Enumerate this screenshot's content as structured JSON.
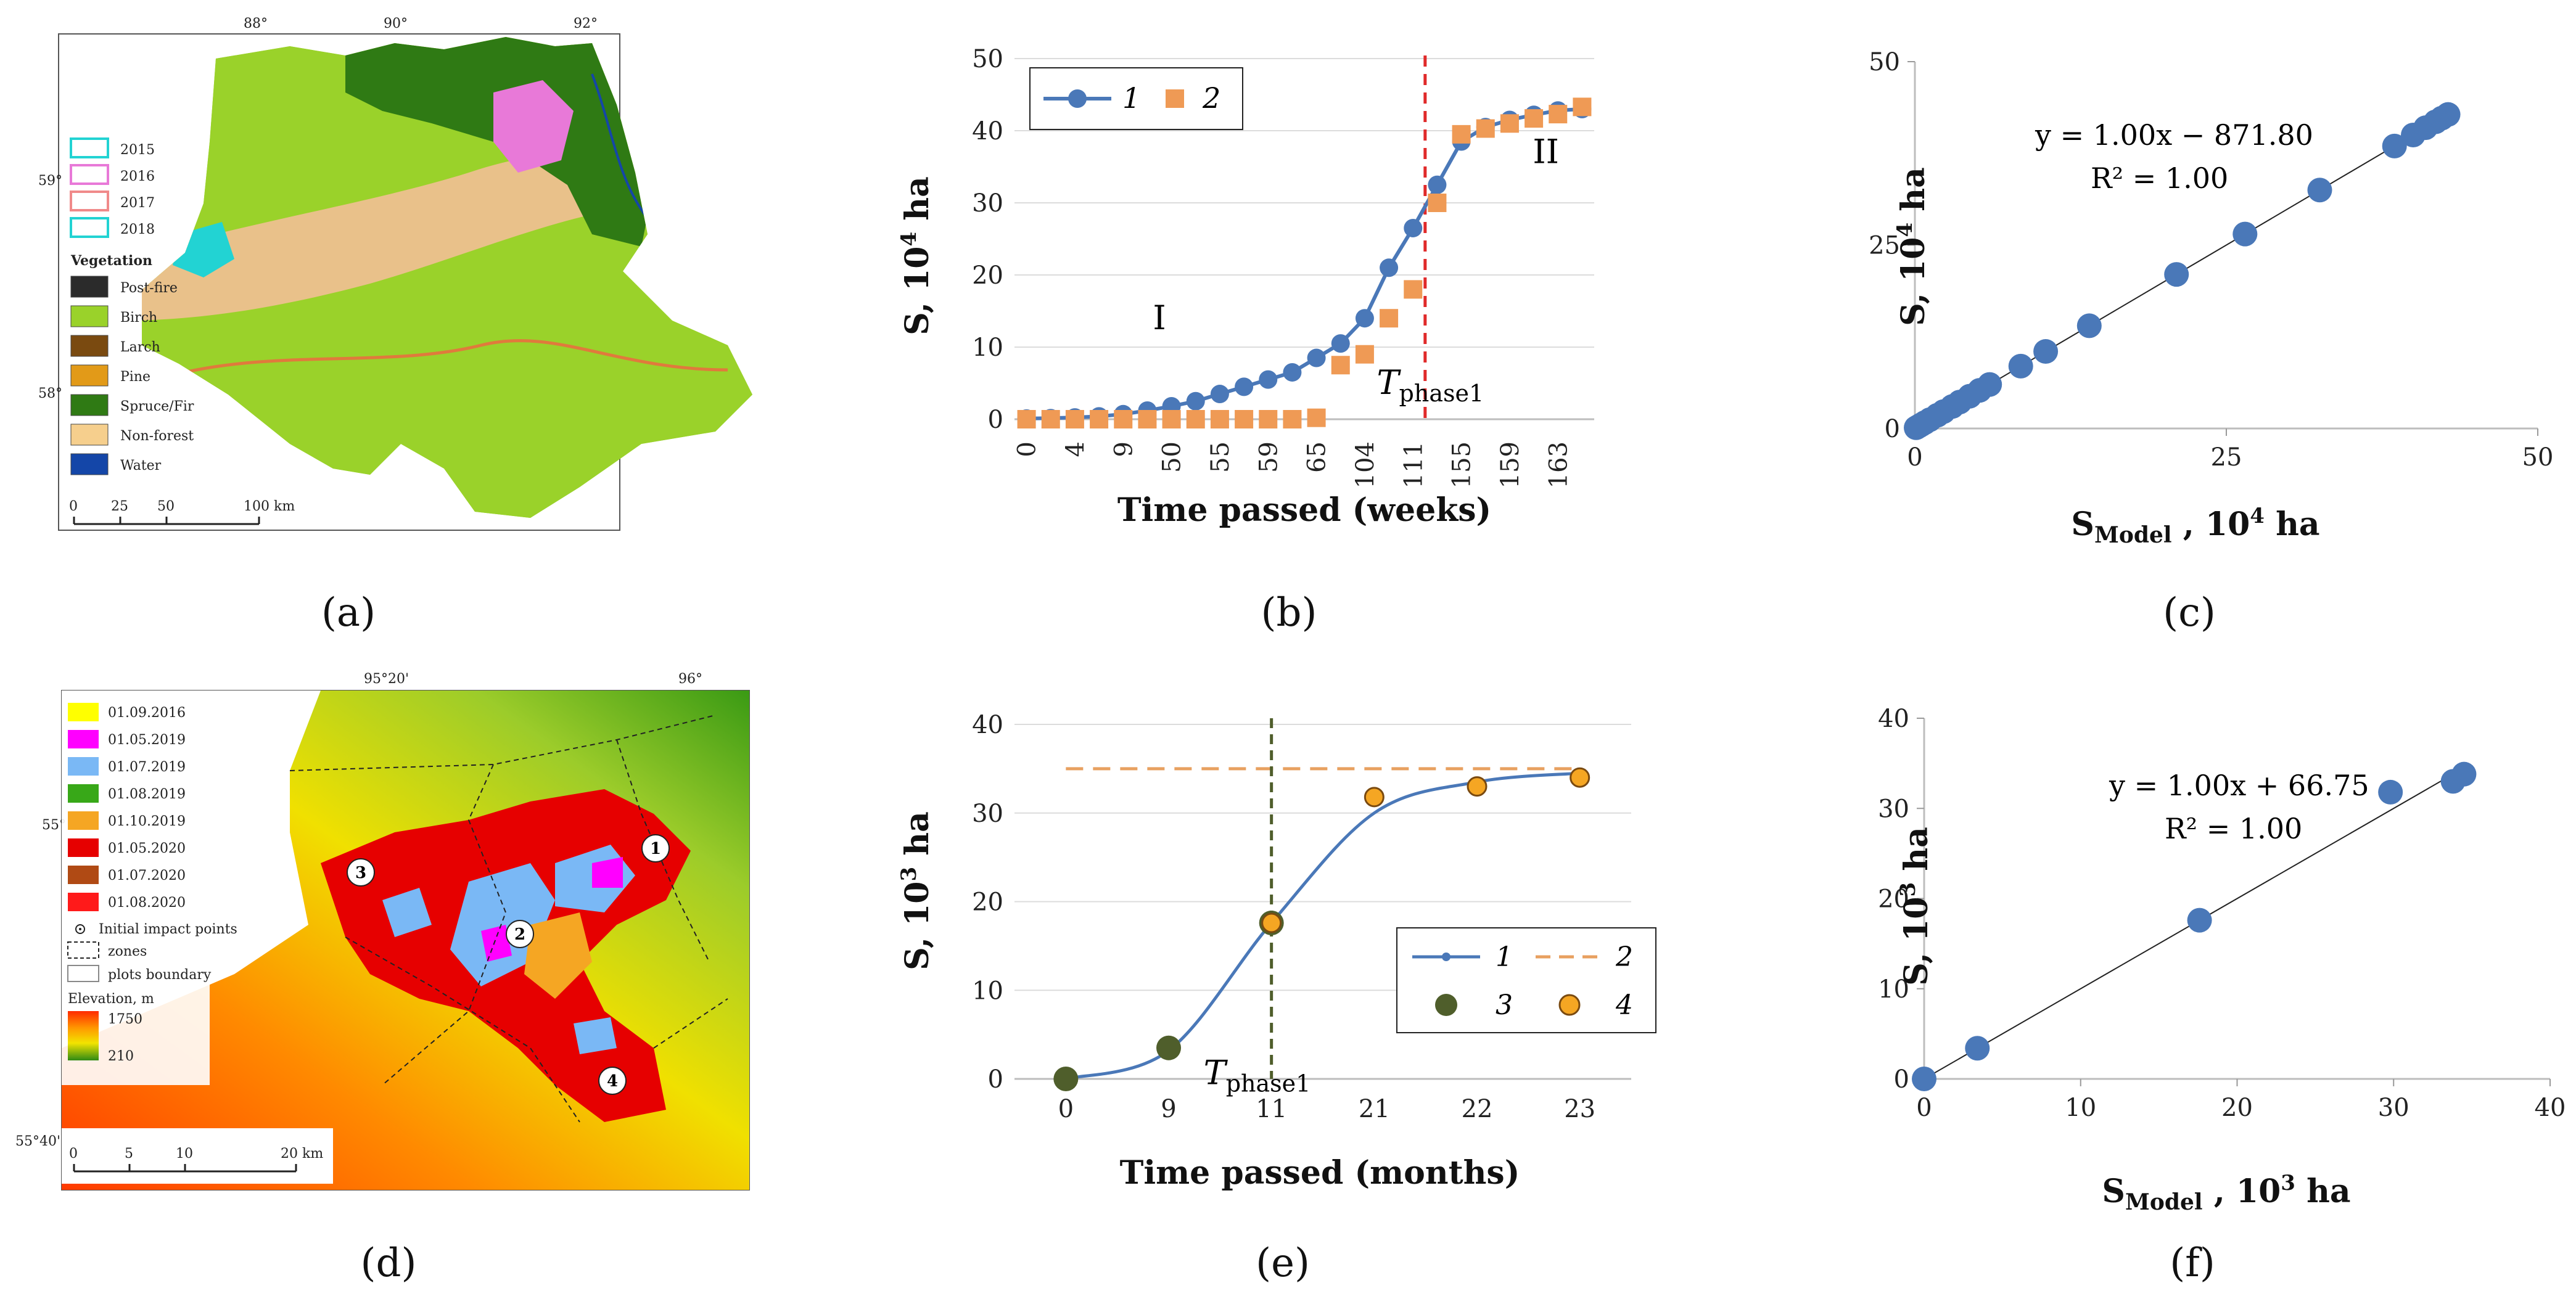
{
  "captions": [
    "(a)",
    "(b)",
    "(c)",
    "(d)",
    "(e)",
    "(f)"
  ],
  "map_a": {
    "coords_top": [
      "88°",
      "90°",
      "92°"
    ],
    "coords_left": [
      "59°",
      "58°"
    ],
    "legend_years": [
      {
        "label": "2015",
        "color": "#22d3d3"
      },
      {
        "label": "2016",
        "color": "#e879d8"
      },
      {
        "label": "2017",
        "color": "#f08a8a"
      },
      {
        "label": "2018",
        "color": "#22d3d3"
      }
    ],
    "vegetation_title": "Vegetation",
    "legend_veg": [
      {
        "label": "Post-fire",
        "color": "#2b2b2b"
      },
      {
        "label": "Birch",
        "color": "#9ad22a"
      },
      {
        "label": "Larch",
        "color": "#7a4a10"
      },
      {
        "label": "Pine",
        "color": "#e29a18"
      },
      {
        "label": "Spruce/Fir",
        "color": "#2f7a14"
      },
      {
        "label": "Non-forest",
        "color": "#f6cf8d"
      },
      {
        "label": "Water",
        "color": "#1446a8"
      }
    ],
    "scale_ticks": [
      "0",
      "25",
      "50",
      "100 km"
    ],
    "colors": {
      "birch": "#9ad22a",
      "spruce": "#2f7a14",
      "nonforest": "#e9c18a",
      "pink": "#e879d8",
      "cyan": "#22d3d3",
      "fire": "#e07a3c",
      "water": "#1446a8"
    }
  },
  "map_d": {
    "coords_top": [
      "95°20'",
      "96°"
    ],
    "coords_left": [
      "55°"
    ],
    "coords_corner": "55°40'",
    "legend_dates": [
      {
        "label": "01.09.2016",
        "color": "#ffff00"
      },
      {
        "label": "01.05.2019",
        "color": "#ff00ff"
      },
      {
        "label": "01.07.2019",
        "color": "#7ab8f5"
      },
      {
        "label": "01.08.2019",
        "color": "#38a818"
      },
      {
        "label": "01.10.2019",
        "color": "#f5a623"
      },
      {
        "label": "01.05.2020",
        "color": "#e60000"
      },
      {
        "label": "01.07.2020",
        "color": "#b04a14"
      },
      {
        "label": "01.08.2020",
        "color": "#ff1a1a"
      }
    ],
    "legend_other": [
      "Initial impact points",
      "zones",
      "plots boundary"
    ],
    "elevation_title": "Elevation, m",
    "elevation_max": "1750",
    "elevation_min": "210",
    "scale_ticks": [
      "0",
      "5",
      "10",
      "20 km"
    ],
    "plot_numbers": [
      "1",
      "2",
      "3",
      "4"
    ]
  },
  "chart_data": [
    {
      "id": "b",
      "type": "line",
      "ylabel_main": "S, 10",
      "ylabel_sup": "4",
      "ylabel_tail": " ha",
      "xlabel": "Time passed (weeks)",
      "ylim": [
        0,
        50
      ],
      "yticks": [
        "0",
        "10",
        "20",
        "30",
        "40",
        "50"
      ],
      "categories": [
        "0",
        "",
        "4",
        "",
        "9",
        "",
        "50",
        "",
        "55",
        "",
        "59",
        "",
        "65",
        "",
        "104",
        "",
        "111",
        "",
        "155",
        "",
        "159",
        "",
        "163",
        ""
      ],
      "series": [
        {
          "name": "1",
          "style": "line-circle",
          "color": "#4a78b8",
          "values": [
            0.1,
            0.15,
            0.25,
            0.4,
            0.7,
            1.2,
            1.8,
            2.5,
            3.5,
            4.5,
            5.5,
            6.5,
            8.5,
            10.5,
            14,
            21,
            26.5,
            32.5,
            38.5,
            40.5,
            41.5,
            42.2,
            42.8,
            43.0
          ]
        },
        {
          "name": "2",
          "style": "square",
          "color": "#ef9a55",
          "values": [
            0,
            0,
            0,
            0,
            0,
            0,
            0,
            0,
            0,
            0,
            0,
            0,
            0.2,
            7.5,
            9,
            14,
            18,
            30,
            39.5,
            40.3,
            41,
            41.7,
            42.3,
            43.3
          ]
        }
      ],
      "vline": {
        "position": 16.5,
        "color": "#e02a2a"
      },
      "annotations": [
        {
          "text": "I",
          "x": 5.5,
          "y": 12.5
        },
        {
          "text": "II",
          "x": 21.5,
          "y": 35.5
        }
      ],
      "phase_label": {
        "main": "T",
        "sub": "phase1",
        "x": 14.5,
        "y": 3.5
      }
    },
    {
      "id": "c",
      "type": "scatter",
      "ylabel_main": "S, 10",
      "ylabel_sup": "4",
      "ylabel_tail": " ha",
      "xlabel_main": "S",
      "xlabel_sub": "Model",
      "xlabel_tail": " , 10",
      "xlabel_sup": "4",
      "xlabel_end": " ha",
      "xlim": [
        0,
        50
      ],
      "ylim": [
        0,
        50
      ],
      "xticks": [
        "0",
        "25",
        "50"
      ],
      "yticks": [
        "0",
        "25",
        "50"
      ],
      "x": [
        0.1,
        0.3,
        0.5,
        0.8,
        1.2,
        1.8,
        2.3,
        3.0,
        3.6,
        4.4,
        5.2,
        6.0,
        8.5,
        10.5,
        14,
        21,
        26.5,
        32.5,
        38.5,
        40.0,
        41.0,
        41.8,
        42.3,
        42.8
      ],
      "y": [
        0.1,
        0.3,
        0.5,
        0.8,
        1.2,
        1.8,
        2.3,
        3.0,
        3.6,
        4.4,
        5.2,
        6.0,
        8.5,
        10.5,
        14,
        21,
        26.5,
        32.5,
        38.5,
        40.0,
        41.0,
        41.8,
        42.3,
        42.8
      ],
      "color": "#4a78b8",
      "equation": "y = 1.00x − 871.80",
      "r2": "R² = 1.00",
      "fit": [
        [
          0,
          0
        ],
        [
          43,
          43
        ]
      ]
    },
    {
      "id": "e",
      "type": "line",
      "ylabel_main": "S, 10",
      "ylabel_sup": "3",
      "ylabel_tail": " ha",
      "xlabel": "Time passed (months)",
      "ylim": [
        0,
        40
      ],
      "yticks": [
        "0",
        "10",
        "20",
        "30",
        "40"
      ],
      "categories": [
        "0",
        "9",
        "11",
        "21",
        "22",
        "23"
      ],
      "series": [
        {
          "name": "1",
          "style": "smooth-line",
          "color": "#4a78b8",
          "values": [
            0,
            3.2,
            17.6,
            30,
            33.5,
            34.5
          ]
        },
        {
          "name": "2",
          "style": "dashed-line",
          "color": "#e8a060",
          "value": 35
        },
        {
          "name": "3",
          "style": "circle",
          "color": "#4f5e2b",
          "points": [
            [
              0,
              0
            ],
            [
              1,
              3.5
            ],
            [
              2,
              17.6
            ]
          ]
        },
        {
          "name": "4",
          "style": "circle",
          "color": "#f5a623",
          "points": [
            [
              2,
              17.6
            ],
            [
              3,
              31.8
            ],
            [
              4,
              33
            ],
            [
              5,
              34
            ]
          ]
        }
      ],
      "vline": {
        "position": 2,
        "color": "#4f5e2b"
      },
      "phase_label": {
        "main": "T",
        "sub": "phase1",
        "x": 2,
        "y": 1.5
      }
    },
    {
      "id": "f",
      "type": "scatter",
      "ylabel_main": "S, 10",
      "ylabel_sup": "3",
      "ylabel_tail": " ha",
      "xlabel_main": "S",
      "xlabel_sub": "Model",
      "xlabel_tail": " , 10",
      "xlabel_sup": "3",
      "xlabel_end": " ha",
      "xlim": [
        0,
        40
      ],
      "ylim": [
        0,
        40
      ],
      "xticks": [
        "0",
        "10",
        "20",
        "30",
        "40"
      ],
      "yticks": [
        "0",
        "10",
        "20",
        "30",
        "40"
      ],
      "x": [
        0,
        3.4,
        17.6,
        29.8,
        33.8,
        34.5
      ],
      "y": [
        0,
        3.4,
        17.6,
        31.8,
        33.0,
        33.8
      ],
      "color": "#4a78b8",
      "equation": "y = 1.00x + 66.75",
      "r2": "R² = 1.00",
      "fit": [
        [
          0,
          0
        ],
        [
          34.5,
          34.5
        ]
      ]
    }
  ]
}
